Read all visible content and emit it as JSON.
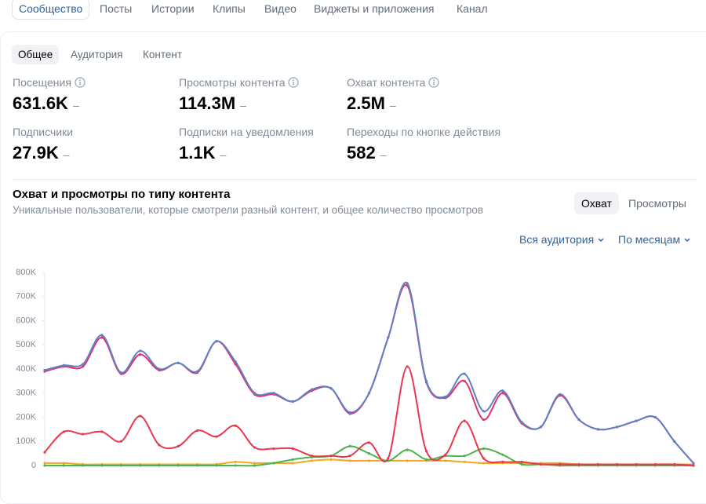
{
  "tabs": [
    "Сообщество",
    "Посты",
    "Истории",
    "Клипы",
    "Видео",
    "Виджеты и приложения",
    "Канал"
  ],
  "subtabs": [
    "Общее",
    "Аудитория",
    "Контент"
  ],
  "metrics": [
    {
      "label": "Посещения",
      "value": "631.6K",
      "trend": "–"
    },
    {
      "label": "Просмотры контента",
      "value": "114.3M",
      "trend": "–"
    },
    {
      "label": "Охват контента",
      "value": "2.5M",
      "trend": "–"
    },
    {
      "label": "Подписчики",
      "value": "27.9K",
      "trend": "–"
    },
    {
      "label": "Подписки на уведомления",
      "value": "1.1K",
      "trend": "–"
    },
    {
      "label": "Переходы по кнопке действия",
      "value": "582",
      "trend": "–"
    }
  ],
  "toggle": [
    "Охват",
    "Просмотры"
  ],
  "filters": [
    "Вся аудитория",
    "По месяцам"
  ],
  "chart_data": {
    "type": "line",
    "title": "Охват и просмотры по типу контента",
    "subtitle": "Уникальные пользователи, которые смотрели разный контент, и общее количество просмотров",
    "ylim": [
      0,
      800000
    ],
    "yticks": [
      0,
      {
        "value": 100000,
        "label": "100K"
      },
      {
        "value": 200000,
        "label": "200K"
      },
      {
        "value": 300000,
        "label": "300K"
      },
      {
        "value": 400000,
        "label": "400K"
      },
      {
        "value": 500000,
        "label": "500K"
      },
      {
        "value": 600000,
        "label": "600K"
      },
      {
        "value": 700000,
        "label": "700K"
      },
      {
        "value": 800000,
        "label": "800K"
      }
    ],
    "grid": false,
    "series": [
      {
        "color": "#5f80c4",
        "values": [
          395000,
          415000,
          420000,
          540000,
          385000,
          475000,
          400000,
          425000,
          390000,
          515000,
          430000,
          300000,
          300000,
          265000,
          315000,
          320000,
          220000,
          300000,
          530000,
          755000,
          350000,
          285000,
          380000,
          225000,
          310000,
          180000,
          160000,
          295000,
          190000,
          150000,
          160000,
          185000,
          200000,
          100000,
          10000
        ]
      },
      {
        "color": "#e3306f",
        "values": [
          390000,
          410000,
          410000,
          530000,
          380000,
          460000,
          395000,
          425000,
          385000,
          515000,
          420000,
          295000,
          295000,
          265000,
          310000,
          320000,
          215000,
          300000,
          530000,
          745000,
          345000,
          280000,
          350000,
          190000,
          300000,
          175000,
          160000,
          290000,
          190000,
          150000,
          160000,
          185000,
          200000,
          100000,
          10000
        ]
      },
      {
        "color": "#e8384f",
        "values": [
          55000,
          140000,
          130000,
          140000,
          100000,
          205000,
          85000,
          80000,
          145000,
          120000,
          165000,
          75000,
          70000,
          70000,
          40000,
          40000,
          40000,
          95000,
          30000,
          410000,
          60000,
          45000,
          185000,
          30000,
          15000,
          15000,
          5000,
          5000,
          5000,
          5000,
          5000,
          5000,
          5000,
          5000,
          0
        ]
      },
      {
        "color": "#4bb34b",
        "values": [
          0,
          0,
          0,
          0,
          0,
          0,
          0,
          0,
          0,
          0,
          0,
          0,
          10000,
          25000,
          35000,
          40000,
          80000,
          50000,
          20000,
          65000,
          25000,
          40000,
          40000,
          70000,
          45000,
          5000,
          5000,
          0,
          0,
          0,
          0,
          0,
          0,
          0,
          0
        ]
      },
      {
        "color": "#f5a623",
        "values": [
          10000,
          10000,
          5000,
          5000,
          5000,
          5000,
          5000,
          5000,
          5000,
          5000,
          15000,
          10000,
          10000,
          10000,
          20000,
          25000,
          20000,
          20000,
          20000,
          20000,
          20000,
          20000,
          15000,
          10000,
          10000,
          10000,
          10000,
          10000,
          5000,
          5000,
          5000,
          5000,
          5000,
          5000,
          5000
        ]
      }
    ]
  }
}
